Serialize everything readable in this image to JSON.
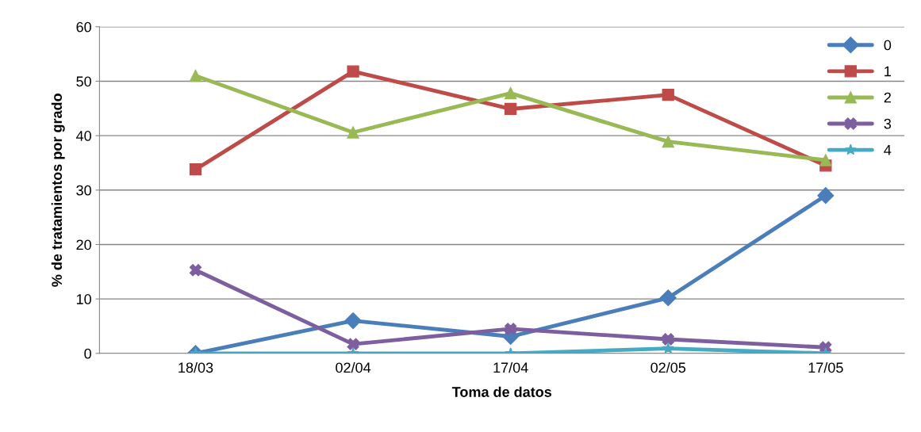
{
  "chart_data": {
    "type": "line",
    "xlabel": "Toma de datos",
    "ylabel": "% de tratamientos por grado",
    "categories": [
      "18/03",
      "02/04",
      "17/04",
      "02/05",
      "17/05"
    ],
    "series": [
      {
        "name": "0",
        "color": "#4a7ebb",
        "marker": "diamond",
        "values": [
          0,
          6,
          3.1,
          10.2,
          29
        ]
      },
      {
        "name": "1",
        "color": "#be4b48",
        "marker": "square",
        "values": [
          33.8,
          51.8,
          44.9,
          47.5,
          34.5
        ]
      },
      {
        "name": "2",
        "color": "#98b954",
        "marker": "triangle",
        "values": [
          51,
          40.6,
          47.8,
          38.9,
          35.5
        ]
      },
      {
        "name": "3",
        "color": "#7d5fa0",
        "marker": "cross",
        "values": [
          15.3,
          1.7,
          4.5,
          2.6,
          1.1
        ]
      },
      {
        "name": "4",
        "color": "#46aac5",
        "marker": "star",
        "values": [
          0,
          0,
          0,
          0.9,
          0
        ]
      }
    ],
    "ylim": [
      0,
      60
    ],
    "yticks": [
      0,
      10,
      20,
      30,
      40,
      50,
      60
    ],
    "grid": "y",
    "legend": "top right",
    "line_style": "solid"
  }
}
